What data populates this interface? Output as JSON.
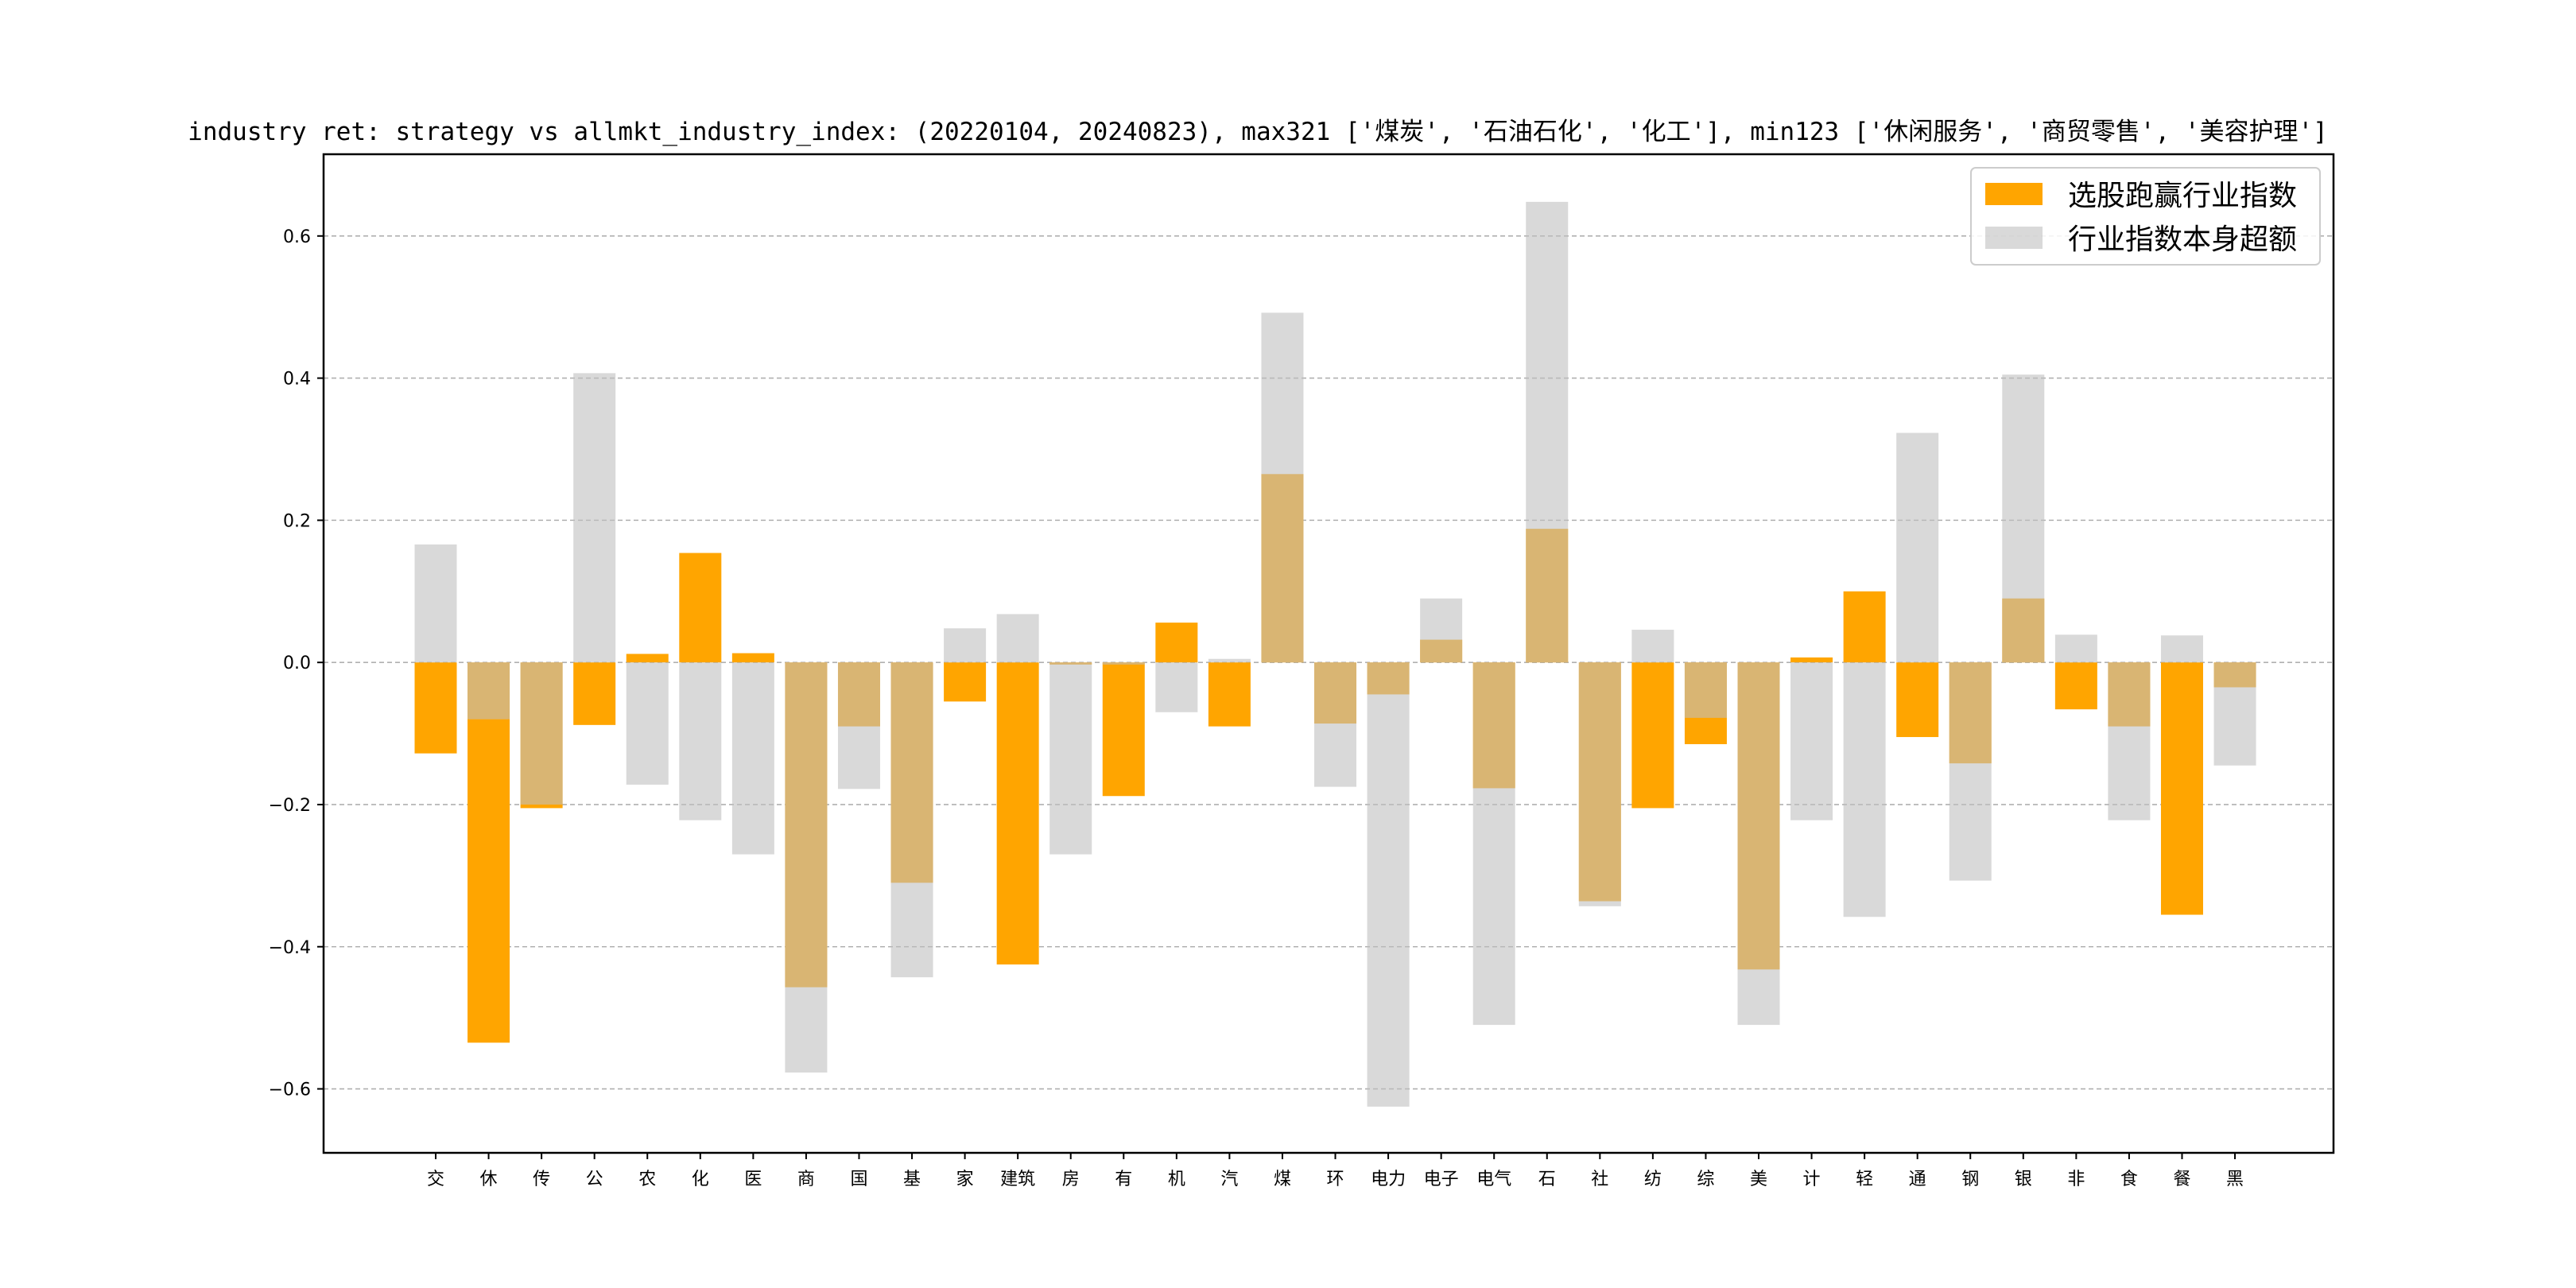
{
  "chart_data": {
    "type": "bar",
    "title": "industry ret: strategy vs allmkt_industry_index: (20220104, 20240823), max321 ['煤炭', '石油石化', '化工'], min123 ['休闲服务', '商贸零售', '美容护理']",
    "xlabel": "",
    "ylabel": "",
    "ylim": [
      -0.69,
      0.715
    ],
    "yticks": [
      -0.6,
      -0.4,
      -0.2,
      0.0,
      0.2,
      0.4,
      0.6
    ],
    "ytick_labels": [
      "−0.6",
      "−0.4",
      "−0.2",
      "0.0",
      "0.2",
      "0.4",
      "0.6"
    ],
    "grid": "y-dashed",
    "legend_position": "top-right",
    "categories": [
      "交",
      "休",
      "传",
      "公",
      "农",
      "化",
      "医",
      "商",
      "国",
      "基",
      "家",
      "建筑",
      "房",
      "有",
      "机",
      "汽",
      "煤",
      "环",
      "电力",
      "电子",
      "电气",
      "石",
      "社",
      "纺",
      "综",
      "美",
      "计",
      "轻",
      "通",
      "钢",
      "银",
      "非",
      "食",
      "餐",
      "黑"
    ],
    "series": [
      {
        "name": "选股跑赢行业指数",
        "color": "#FFA500",
        "values": [
          -0.128,
          -0.535,
          -0.205,
          -0.088,
          0.012,
          0.154,
          0.013,
          -0.457,
          -0.09,
          -0.31,
          -0.055,
          -0.425,
          -0.003,
          -0.188,
          0.056,
          -0.09,
          0.265,
          -0.086,
          -0.045,
          0.032,
          -0.177,
          0.188,
          -0.336,
          -0.205,
          -0.115,
          -0.432,
          0.007,
          0.1,
          -0.105,
          -0.142,
          0.09,
          -0.066,
          -0.09,
          -0.355,
          -0.035
        ]
      },
      {
        "name": "行业指数本身超额",
        "color": "#BFBFBF",
        "values": [
          0.166,
          -0.08,
          -0.2,
          0.407,
          -0.172,
          -0.222,
          -0.27,
          -0.577,
          -0.178,
          -0.443,
          0.048,
          0.068,
          -0.27,
          -0.003,
          -0.07,
          0.005,
          0.492,
          -0.175,
          -0.625,
          0.09,
          -0.51,
          0.648,
          -0.343,
          0.046,
          -0.078,
          -0.51,
          -0.222,
          -0.358,
          0.323,
          -0.307,
          0.405,
          0.039,
          -0.222,
          0.038,
          -0.145
        ]
      }
    ]
  }
}
